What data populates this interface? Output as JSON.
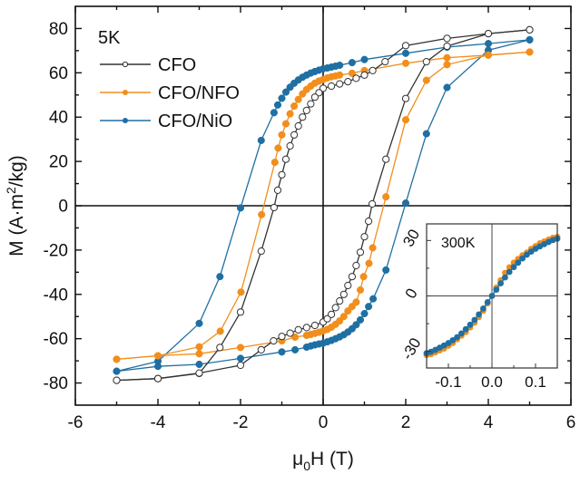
{
  "chart_data": [
    {
      "type": "line",
      "title": "",
      "annotation": "5K",
      "xlabel": "μ0H (T)",
      "xlabel_parts": {
        "main": "μ",
        "sub": "0",
        "rest": "H (T)"
      },
      "ylabel": "M (A·m²/kg)",
      "ylabel_parts": {
        "pre": "M (A·m",
        "sup": "2",
        "post": "/kg)"
      },
      "xlim": [
        -6,
        6
      ],
      "ylim": [
        -90,
        90
      ],
      "xticks": [
        -6,
        -4,
        -2,
        0,
        2,
        4,
        6
      ],
      "yticks": [
        -80,
        -60,
        -40,
        -20,
        0,
        20,
        40,
        60,
        80
      ],
      "grid": false,
      "legend_position": "top-left",
      "zero_lines": true,
      "series": [
        {
          "name": "CFO",
          "color": "#333333",
          "marker": "open-circle",
          "descending": [
            [
              5,
              79.4
            ],
            [
              4,
              77.7
            ],
            [
              3,
              75.5
            ],
            [
              2,
              72.3
            ],
            [
              1.5,
              65
            ],
            [
              1.2,
              61
            ],
            [
              1,
              59
            ],
            [
              0.8,
              57.5
            ],
            [
              0.6,
              56
            ],
            [
              0.4,
              55
            ],
            [
              0.2,
              54
            ],
            [
              0,
              53
            ],
            [
              -0.1,
              51
            ],
            [
              -0.2,
              49
            ],
            [
              -0.3,
              46
            ],
            [
              -0.4,
              43
            ],
            [
              -0.5,
              40
            ],
            [
              -0.6,
              36
            ],
            [
              -0.7,
              32
            ],
            [
              -0.8,
              27
            ],
            [
              -0.9,
              21
            ],
            [
              -1.0,
              14
            ],
            [
              -1.1,
              7
            ],
            [
              -1.19,
              -0.8
            ],
            [
              -1.5,
              -20.5
            ],
            [
              -2,
              -48
            ],
            [
              -2.5,
              -64
            ],
            [
              -3,
              -75.7
            ],
            [
              -4,
              -78
            ],
            [
              -5,
              -78.8
            ]
          ],
          "ascending": [
            [
              -5,
              -78.8
            ],
            [
              -4,
              -78
            ],
            [
              -3,
              -75.5
            ],
            [
              -2,
              -72
            ],
            [
              -1.5,
              -65
            ],
            [
              -1.2,
              -61
            ],
            [
              -1,
              -59
            ],
            [
              -0.8,
              -57.5
            ],
            [
              -0.6,
              -56
            ],
            [
              -0.4,
              -55
            ],
            [
              -0.2,
              -54
            ],
            [
              0,
              -52.5
            ],
            [
              0.1,
              -51
            ],
            [
              0.2,
              -49
            ],
            [
              0.3,
              -46
            ],
            [
              0.4,
              -43
            ],
            [
              0.5,
              -40
            ],
            [
              0.6,
              -36
            ],
            [
              0.7,
              -32
            ],
            [
              0.8,
              -27
            ],
            [
              0.9,
              -21
            ],
            [
              1.0,
              -14
            ],
            [
              1.1,
              -7
            ],
            [
              1.19,
              0.8
            ],
            [
              1.52,
              21
            ],
            [
              2,
              48.4
            ],
            [
              2.5,
              65
            ],
            [
              3,
              72
            ],
            [
              4,
              77.7
            ],
            [
              5,
              79.4
            ]
          ]
        },
        {
          "name": "CFO/NFO",
          "color": "#F28E1C",
          "marker": "filled-circle",
          "descending": [
            [
              5,
              69.4
            ],
            [
              4,
              68
            ],
            [
              3,
              66.8
            ],
            [
              2,
              64.3
            ],
            [
              1,
              61
            ],
            [
              0.7,
              59.8
            ],
            [
              0.4,
              59
            ],
            [
              0.3,
              58.6
            ],
            [
              0.2,
              58.2
            ],
            [
              0.1,
              57.7
            ],
            [
              0,
              57
            ],
            [
              -0.1,
              56.3
            ],
            [
              -0.2,
              55.3
            ],
            [
              -0.3,
              54
            ],
            [
              -0.4,
              52.5
            ],
            [
              -0.5,
              50.5
            ],
            [
              -0.6,
              48
            ],
            [
              -0.7,
              45
            ],
            [
              -0.8,
              41.5
            ],
            [
              -0.9,
              37
            ],
            [
              -1.0,
              32
            ],
            [
              -1.09,
              26
            ],
            [
              -1.17,
              19.6
            ],
            [
              -1.49,
              -4
            ],
            [
              -1.99,
              -39
            ],
            [
              -2.49,
              -56.6
            ],
            [
              -3,
              -63.7
            ],
            [
              -4,
              -67.7
            ],
            [
              -5,
              -69.3
            ]
          ],
          "ascending": [
            [
              -5,
              -69.3
            ],
            [
              -4,
              -67.7
            ],
            [
              -3,
              -66.8
            ],
            [
              -2,
              -64
            ],
            [
              -1,
              -61
            ],
            [
              -0.68,
              -59.3
            ],
            [
              -0.4,
              -58.5
            ],
            [
              -0.3,
              -58.1
            ],
            [
              -0.2,
              -57.6
            ],
            [
              -0.1,
              -57.1
            ],
            [
              0,
              -56.5
            ],
            [
              0.1,
              -55.8
            ],
            [
              0.2,
              -54.8
            ],
            [
              0.3,
              -53.5
            ],
            [
              0.4,
              -52
            ],
            [
              0.5,
              -50
            ],
            [
              0.6,
              -47.5
            ],
            [
              0.7,
              -45.5
            ],
            [
              0.8,
              -43.5
            ],
            [
              0.9,
              -38
            ],
            [
              0.98,
              -32
            ],
            [
              1.11,
              -26
            ],
            [
              1.2,
              -19
            ],
            [
              1.52,
              4
            ],
            [
              2,
              38.8
            ],
            [
              2.5,
              56.6
            ],
            [
              3,
              63.7
            ],
            [
              4,
              68
            ],
            [
              5,
              69.4
            ]
          ]
        },
        {
          "name": "CFO/NiO",
          "color": "#1F6FA3",
          "marker": "filled-circle",
          "descending": [
            [
              5,
              74.9
            ],
            [
              4,
              73.2
            ],
            [
              3,
              71.6
            ],
            [
              2,
              68.8
            ],
            [
              1,
              66
            ],
            [
              0.7,
              64.6
            ],
            [
              0.4,
              63.4
            ],
            [
              0.3,
              63
            ],
            [
              0.2,
              62.6
            ],
            [
              0.1,
              62.2
            ],
            [
              0,
              61.8
            ],
            [
              -0.1,
              61.2
            ],
            [
              -0.2,
              60.6
            ],
            [
              -0.3,
              59.9
            ],
            [
              -0.4,
              59
            ],
            [
              -0.5,
              58
            ],
            [
              -0.6,
              56.8
            ],
            [
              -0.7,
              55.3
            ],
            [
              -0.8,
              53.5
            ],
            [
              -0.9,
              51.3
            ],
            [
              -1.0,
              48.5
            ],
            [
              -1.1,
              45.5
            ],
            [
              -1.19,
              42
            ],
            [
              -1.5,
              29.5
            ],
            [
              -2.0,
              -1
            ],
            [
              -2.5,
              -32
            ],
            [
              -3,
              -53.1
            ],
            [
              -4,
              -70.2
            ],
            [
              -5,
              -74.7
            ]
          ],
          "ascending": [
            [
              -5,
              -74.7
            ],
            [
              -4,
              -72.5
            ],
            [
              -3,
              -71.6
            ],
            [
              -2,
              -68.9
            ],
            [
              -1,
              -66
            ],
            [
              -0.68,
              -65
            ],
            [
              -0.4,
              -63.8
            ],
            [
              -0.3,
              -63.3
            ],
            [
              -0.2,
              -62.8
            ],
            [
              -0.1,
              -62.4
            ],
            [
              0,
              -62
            ],
            [
              0.1,
              -61.4
            ],
            [
              0.2,
              -60.8
            ],
            [
              0.3,
              -60
            ],
            [
              0.4,
              -59.2
            ],
            [
              0.5,
              -58.2
            ],
            [
              0.6,
              -57
            ],
            [
              0.7,
              -55.5
            ],
            [
              0.8,
              -53.7
            ],
            [
              0.9,
              -51.5
            ],
            [
              1.0,
              -48.7
            ],
            [
              1.1,
              -45.5
            ],
            [
              1.21,
              -42
            ],
            [
              1.52,
              -29
            ],
            [
              2,
              1.2
            ],
            [
              2.5,
              32.5
            ],
            [
              3,
              53.4
            ],
            [
              4,
              70.2
            ],
            [
              5,
              74.9
            ]
          ]
        }
      ]
    },
    {
      "type": "scatter",
      "title": "",
      "annotation": "300K",
      "xlabel": "",
      "ylabel": "",
      "xlim": [
        -0.15,
        0.15
      ],
      "ylim": [
        -39,
        39
      ],
      "xticks": [
        -0.1,
        0.0,
        0.1
      ],
      "xtick_labels": [
        "-0.1",
        "0.0",
        "0.1"
      ],
      "yticks": [
        -30,
        0,
        30
      ],
      "ytick_labels": [
        "-30",
        "0",
        "30"
      ],
      "grid": false,
      "legend_position": "none",
      "zero_lines": true,
      "series": [
        {
          "name": "CFO/NFO",
          "color": "#F28E1C",
          "points": [
            [
              -0.15,
              -32
            ],
            [
              -0.14,
              -31.5
            ],
            [
              -0.13,
              -30.5
            ],
            [
              -0.12,
              -29.5
            ],
            [
              -0.11,
              -28.5
            ],
            [
              -0.1,
              -27
            ],
            [
              -0.09,
              -25.5
            ],
            [
              -0.08,
              -23.5
            ],
            [
              -0.07,
              -21.5
            ],
            [
              -0.06,
              -19.5
            ],
            [
              -0.05,
              -17
            ],
            [
              -0.04,
              -14.5
            ],
            [
              -0.03,
              -11.5
            ],
            [
              -0.02,
              -8
            ],
            [
              -0.01,
              -4
            ],
            [
              0,
              0
            ],
            [
              0.01,
              4.5
            ],
            [
              0.02,
              8.5
            ],
            [
              0.03,
              12.5
            ],
            [
              0.04,
              15.5
            ],
            [
              0.05,
              18
            ],
            [
              0.06,
              20
            ],
            [
              0.07,
              22
            ],
            [
              0.08,
              23.5
            ],
            [
              0.09,
              25.5
            ],
            [
              0.1,
              27
            ],
            [
              0.11,
              28.5
            ],
            [
              0.12,
              29.5
            ],
            [
              0.13,
              30.5
            ],
            [
              0.14,
              31.5
            ],
            [
              0.15,
              32
            ]
          ]
        },
        {
          "name": "CFO/NiO",
          "color": "#1F6FA3",
          "points": [
            [
              -0.15,
              -31
            ],
            [
              -0.14,
              -30.2
            ],
            [
              -0.13,
              -29.2
            ],
            [
              -0.12,
              -28
            ],
            [
              -0.11,
              -26.8
            ],
            [
              -0.1,
              -25.5
            ],
            [
              -0.09,
              -24
            ],
            [
              -0.08,
              -22.3
            ],
            [
              -0.07,
              -20.3
            ],
            [
              -0.06,
              -18
            ],
            [
              -0.05,
              -15.6
            ],
            [
              -0.04,
              -13
            ],
            [
              -0.03,
              -10
            ],
            [
              -0.02,
              -6.8
            ],
            [
              -0.01,
              -3.4
            ],
            [
              0,
              0
            ],
            [
              0.01,
              3.4
            ],
            [
              0.02,
              6.8
            ],
            [
              0.03,
              10
            ],
            [
              0.04,
              13
            ],
            [
              0.05,
              15.6
            ],
            [
              0.06,
              18
            ],
            [
              0.07,
              20.3
            ],
            [
              0.08,
              22.3
            ],
            [
              0.09,
              24
            ],
            [
              0.1,
              25.5
            ],
            [
              0.11,
              26.8
            ],
            [
              0.12,
              28
            ],
            [
              0.13,
              29.2
            ],
            [
              0.14,
              30.2
            ],
            [
              0.15,
              31
            ]
          ]
        }
      ]
    }
  ]
}
